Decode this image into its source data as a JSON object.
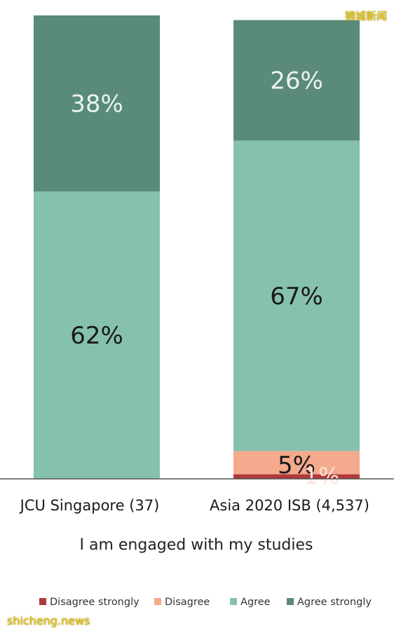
{
  "chart_data": {
    "type": "bar",
    "stacked": true,
    "categories": [
      "JCU Singapore (37)",
      "Asia 2020 ISB (4,537)"
    ],
    "series": [
      {
        "name": "Disagree strongly",
        "color": "#b03a3a",
        "values": [
          0,
          1
        ],
        "labels": [
          "",
          ""
        ]
      },
      {
        "name": "Disagree",
        "color": "#f5a98d",
        "values": [
          0,
          5
        ],
        "labels": [
          "",
          "5%"
        ]
      },
      {
        "name": "Agree",
        "color": "#86c1b0",
        "values": [
          62,
          67
        ],
        "labels": [
          "62%",
          "67%"
        ]
      },
      {
        "name": "Agree strongly",
        "color": "#5a8a78",
        "values": [
          38,
          26
        ],
        "labels": [
          "38%",
          "26%"
        ]
      }
    ],
    "extra_labels": [
      {
        "category": 1,
        "text": "1%"
      }
    ],
    "xlabel": "I am engaged with my studies",
    "ylim": [
      0,
      100
    ],
    "grid": false,
    "legend": "bottom"
  },
  "watermarks": {
    "top": "狮城新闻",
    "bottom": "shicheng.news"
  }
}
